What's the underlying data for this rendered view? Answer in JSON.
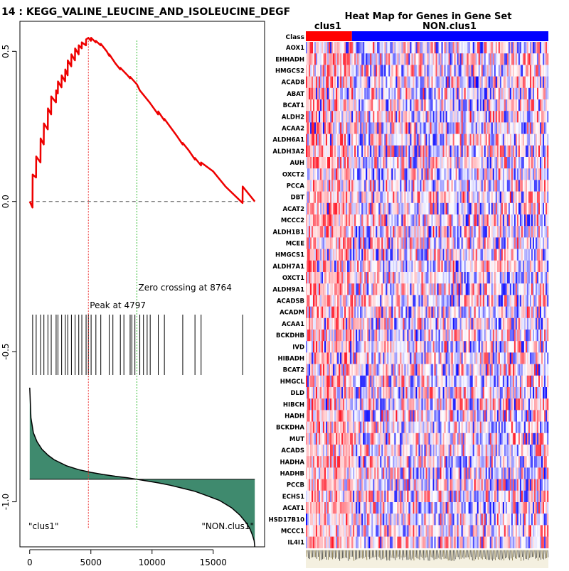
{
  "chart_data": [
    {
      "type": "line",
      "title": "14 : KEGG_VALINE_LEUCINE_AND_ISOLEUCINE_DEGF",
      "xlabel": "",
      "ylabel": "",
      "xlim": [
        -800,
        19200
      ],
      "ylim": [
        -1.15,
        0.6
      ],
      "x_ticks": [
        0,
        5000,
        10000,
        15000
      ],
      "x_tick_labels": [
        "0",
        "5000",
        "10000",
        "15000"
      ],
      "y_ticks": [
        0.5,
        0.0,
        -0.5,
        -1.0
      ],
      "y_tick_labels": [
        "0.5",
        "0.0",
        "-0.5",
        "-1.0"
      ],
      "peak_position": 4797,
      "peak_label": "Peak at 4797",
      "zero_crossing": 8764,
      "zero_crossing_label": "Zero crossing at 8764",
      "left_label": "\"clus1\"",
      "right_label": "\"NON.clus1\"",
      "line_color": "#ee0000",
      "peak_line_color": "#ee3333",
      "zero_line_color": "#33bb33",
      "fill_color": "#3f8a6e",
      "es_curve": {
        "x": [
          0,
          230,
          240,
          520,
          530,
          880,
          890,
          1150,
          1160,
          1480,
          1490,
          1750,
          1760,
          2150,
          2160,
          2300,
          2310,
          2600,
          2610,
          2900,
          2910,
          3100,
          3110,
          3400,
          3410,
          3700,
          3710,
          4000,
          4010,
          4250,
          4260,
          4600,
          4610,
          4797,
          5000,
          5020,
          5400,
          5410,
          5800,
          5810,
          6300,
          6500,
          6510,
          7000,
          7400,
          7410,
          8000,
          8200,
          8210,
          8764,
          9000,
          9800,
          10500,
          10510,
          11000,
          11010,
          12000,
          12500,
          12510,
          13000,
          13500,
          13510,
          14000,
          14010,
          15000,
          16000,
          17400,
          17410,
          18400
        ],
        "y": [
          0.0,
          -0.02,
          0.09,
          0.08,
          0.15,
          0.13,
          0.21,
          0.19,
          0.26,
          0.24,
          0.31,
          0.29,
          0.35,
          0.33,
          0.37,
          0.36,
          0.4,
          0.38,
          0.42,
          0.4,
          0.44,
          0.42,
          0.47,
          0.45,
          0.49,
          0.47,
          0.51,
          0.49,
          0.52,
          0.51,
          0.53,
          0.52,
          0.54,
          0.545,
          0.535,
          0.545,
          0.53,
          0.535,
          0.52,
          0.525,
          0.5,
          0.485,
          0.49,
          0.46,
          0.44,
          0.445,
          0.42,
          0.41,
          0.415,
          0.39,
          0.37,
          0.33,
          0.29,
          0.3,
          0.27,
          0.275,
          0.22,
          0.19,
          0.195,
          0.17,
          0.14,
          0.145,
          0.12,
          0.13,
          0.1,
          0.05,
          -0.005,
          0.05,
          0.0
        ]
      },
      "hit_positions": [
        240,
        530,
        890,
        1160,
        1490,
        1760,
        2160,
        2310,
        2610,
        2910,
        3110,
        3410,
        3710,
        4010,
        4260,
        4610,
        4797,
        5020,
        5410,
        5810,
        6500,
        6800,
        7410,
        7700,
        8210,
        8350,
        8600,
        9000,
        9300,
        9600,
        9850,
        10510,
        11010,
        12510,
        13510,
        14010,
        17410
      ],
      "ranked_metric": {
        "x": [
          0,
          100,
          300,
          600,
          1000,
          1500,
          2000,
          3000,
          4000,
          5000,
          6000,
          7000,
          8000,
          8764,
          9500,
          10500,
          11500,
          12500,
          13500,
          14500,
          15500,
          16500,
          17200,
          17700,
          18000,
          18200,
          18350,
          18400
        ],
        "y": [
          -0.62,
          -0.72,
          -0.77,
          -0.8,
          -0.825,
          -0.845,
          -0.86,
          -0.88,
          -0.893,
          -0.902,
          -0.909,
          -0.915,
          -0.92,
          -0.925,
          -0.93,
          -0.937,
          -0.945,
          -0.955,
          -0.965,
          -0.98,
          -0.995,
          -1.02,
          -1.045,
          -1.07,
          -1.09,
          -1.11,
          -1.13,
          -1.15
        ]
      }
    },
    {
      "type": "heatmap",
      "title": "Heat Map for Genes in Gene Set",
      "row_header": "Class",
      "class_labels": [
        "clus1",
        "NON.clus1"
      ],
      "class_colors": [
        "#ff0000",
        "#0000ff"
      ],
      "class_split": 0.19,
      "rows": [
        "AOX1",
        "EHHADH",
        "HMGCS2",
        "ACAD8",
        "ABAT",
        "BCAT1",
        "ALDH2",
        "ACAA2",
        "ALDH6A1",
        "ALDH3A2",
        "AUH",
        "OXCT2",
        "PCCA",
        "DBT",
        "ACAT2",
        "MCCC2",
        "ALDH1B1",
        "MCEE",
        "HMGCS1",
        "ALDH7A1",
        "OXCT1",
        "ALDH9A1",
        "ACADSB",
        "ACADM",
        "ACAA1",
        "BCKDHB",
        "IVD",
        "HIBADH",
        "BCAT2",
        "HMGCL",
        "DLD",
        "HIBCH",
        "HADH",
        "BCKDHA",
        "MUT",
        "ACADS",
        "HADHA",
        "HADHB",
        "PCCB",
        "ECHS1",
        "ACAT1",
        "HSD17B10",
        "MCCC1",
        "IL4I1"
      ]
    }
  ]
}
